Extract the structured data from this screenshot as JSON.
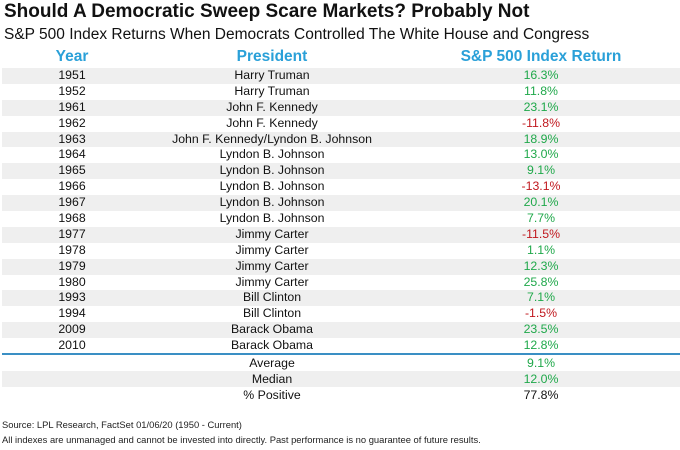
{
  "title": "Should A Democratic Sweep Scare Markets? Probably Not",
  "subtitle": "S&P 500 Index Returns When Democrats Controlled The White House and Congress",
  "headers": {
    "year": "Year",
    "president": "President",
    "return": "S&P 500 Index Return"
  },
  "rows": [
    {
      "year": "1951",
      "president": "Harry Truman",
      "return": "16.3%",
      "sign": "pos"
    },
    {
      "year": "1952",
      "president": "Harry Truman",
      "return": "11.8%",
      "sign": "pos"
    },
    {
      "year": "1961",
      "president": "John F. Kennedy",
      "return": "23.1%",
      "sign": "pos"
    },
    {
      "year": "1962",
      "president": "John F. Kennedy",
      "return": "-11.8%",
      "sign": "neg"
    },
    {
      "year": "1963",
      "president": "John F. Kennedy/Lyndon B. Johnson",
      "return": "18.9%",
      "sign": "pos"
    },
    {
      "year": "1964",
      "president": "Lyndon B. Johnson",
      "return": "13.0%",
      "sign": "pos"
    },
    {
      "year": "1965",
      "president": "Lyndon B. Johnson",
      "return": "9.1%",
      "sign": "pos"
    },
    {
      "year": "1966",
      "president": "Lyndon B. Johnson",
      "return": "-13.1%",
      "sign": "neg"
    },
    {
      "year": "1967",
      "president": "Lyndon B. Johnson",
      "return": "20.1%",
      "sign": "pos"
    },
    {
      "year": "1968",
      "president": "Lyndon B. Johnson",
      "return": "7.7%",
      "sign": "pos"
    },
    {
      "year": "1977",
      "president": "Jimmy Carter",
      "return": "-11.5%",
      "sign": "neg"
    },
    {
      "year": "1978",
      "president": "Jimmy Carter",
      "return": "1.1%",
      "sign": "pos"
    },
    {
      "year": "1979",
      "president": "Jimmy Carter",
      "return": "12.3%",
      "sign": "pos"
    },
    {
      "year": "1980",
      "president": "Jimmy Carter",
      "return": "25.8%",
      "sign": "pos"
    },
    {
      "year": "1993",
      "president": "Bill Clinton",
      "return": "7.1%",
      "sign": "pos"
    },
    {
      "year": "1994",
      "president": "Bill Clinton",
      "return": "-1.5%",
      "sign": "neg"
    },
    {
      "year": "2009",
      "president": "Barack Obama",
      "return": "23.5%",
      "sign": "pos"
    },
    {
      "year": "2010",
      "president": "Barack Obama",
      "return": "12.8%",
      "sign": "pos"
    }
  ],
  "summary": [
    {
      "label": "Average",
      "value": "9.1%",
      "sign": "pos"
    },
    {
      "label": "Median",
      "value": "12.0%",
      "sign": "pos"
    },
    {
      "label": "% Positive",
      "value": "77.8%",
      "sign": "none"
    }
  ],
  "footer": {
    "source": "Source: LPL Research, FactSet 01/06/20 (1950 - Current)",
    "disclaimer": "All indexes are unmanaged and cannot be invested into directly. Past performance is no guarantee of future results."
  },
  "colors": {
    "header": "#2aa0d8",
    "positive": "#1fa84a",
    "negative": "#c0181e",
    "divider": "#3a8fc4",
    "shade": "#efefef"
  }
}
